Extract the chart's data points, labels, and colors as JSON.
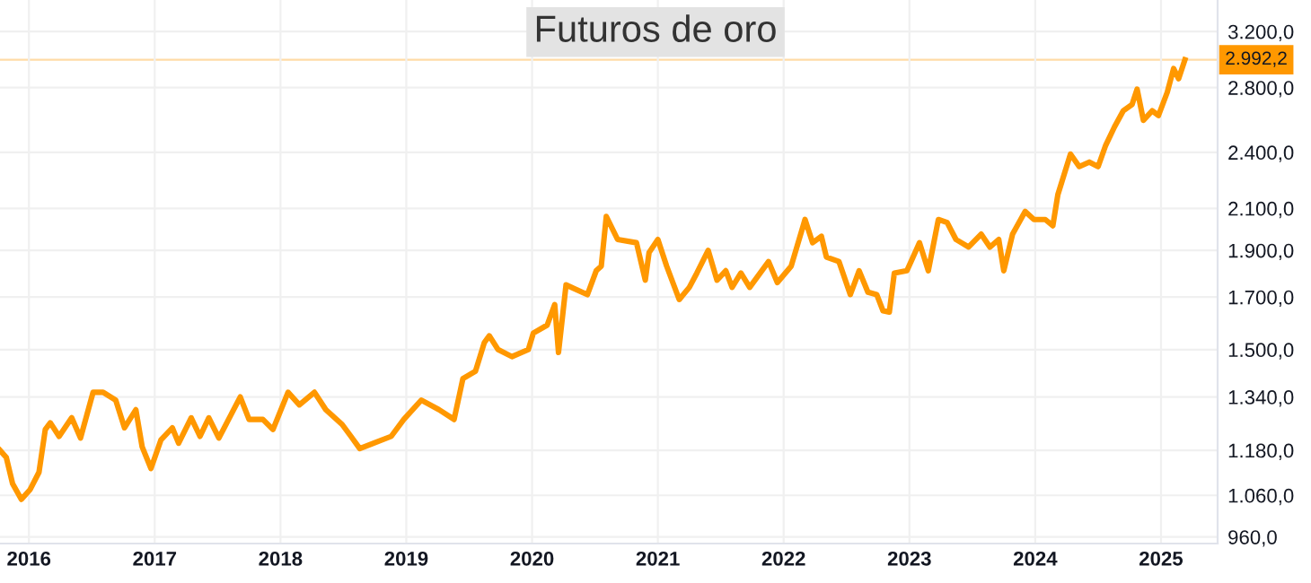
{
  "chart_data": {
    "type": "line",
    "title": "Futuros de oro",
    "log": "y",
    "grid": true,
    "x": [
      2015.77,
      2015.82,
      2015.87,
      2015.94,
      2016.01,
      2016.08,
      2016.13,
      2016.17,
      2016.24,
      2016.34,
      2016.41,
      2016.51,
      2016.59,
      2016.69,
      2016.76,
      2016.85,
      2016.9,
      2016.97,
      2017.05,
      2017.14,
      2017.19,
      2017.29,
      2017.36,
      2017.43,
      2017.51,
      2017.68,
      2017.75,
      2017.86,
      2017.94,
      2018.06,
      2018.15,
      2018.27,
      2018.36,
      2018.49,
      2018.56,
      2018.63,
      2018.74,
      2018.88,
      2018.98,
      2019.12,
      2019.26,
      2019.38,
      2019.45,
      2019.55,
      2019.62,
      2019.66,
      2019.73,
      2019.84,
      2019.97,
      2020.01,
      2020.12,
      2020.18,
      2020.21,
      2020.27,
      2020.44,
      2020.51,
      2020.55,
      2020.59,
      2020.68,
      2020.83,
      2020.9,
      2020.93,
      2021.0,
      2021.07,
      2021.17,
      2021.25,
      2021.31,
      2021.4,
      2021.47,
      2021.54,
      2021.59,
      2021.66,
      2021.73,
      2021.88,
      2021.95,
      2022.06,
      2022.17,
      2022.23,
      2022.3,
      2022.34,
      2022.44,
      2022.53,
      2022.6,
      2022.67,
      2022.74,
      2022.79,
      2022.84,
      2022.88,
      2022.98,
      2023.08,
      2023.15,
      2023.23,
      2023.3,
      2023.37,
      2023.47,
      2023.57,
      2023.64,
      2023.71,
      2023.75,
      2023.82,
      2023.92,
      2023.99,
      2024.08,
      2024.14,
      2024.18,
      2024.28,
      2024.35,
      2024.43,
      2024.5,
      2024.56,
      2024.63,
      2024.7,
      2024.77,
      2024.81,
      2024.86,
      2024.93,
      2024.98,
      2025.05,
      2025.1,
      2025.14,
      2025.19
    ],
    "series": [
      {
        "color": "#ff9800",
        "values": [
          1180,
          1160,
          1090,
          1050,
          1075,
          1120,
          1240,
          1260,
          1220,
          1275,
          1215,
          1355,
          1355,
          1330,
          1245,
          1300,
          1190,
          1130,
          1210,
          1245,
          1200,
          1275,
          1220,
          1275,
          1215,
          1340,
          1270,
          1270,
          1240,
          1355,
          1315,
          1355,
          1300,
          1255,
          1220,
          1185,
          1200,
          1220,
          1270,
          1330,
          1300,
          1270,
          1400,
          1425,
          1525,
          1550,
          1500,
          1475,
          1500,
          1560,
          1590,
          1670,
          1490,
          1750,
          1710,
          1810,
          1830,
          2060,
          1950,
          1935,
          1770,
          1890,
          1950,
          1830,
          1690,
          1740,
          1800,
          1900,
          1770,
          1810,
          1740,
          1800,
          1740,
          1850,
          1760,
          1830,
          2045,
          1935,
          1965,
          1870,
          1850,
          1710,
          1810,
          1720,
          1710,
          1645,
          1640,
          1800,
          1810,
          1935,
          1810,
          2045,
          2030,
          1950,
          1915,
          1975,
          1915,
          1950,
          1810,
          1975,
          2085,
          2045,
          2045,
          2015,
          2170,
          2390,
          2320,
          2345,
          2320,
          2440,
          2550,
          2650,
          2690,
          2790,
          2590,
          2650,
          2620,
          2770,
          2930,
          2860,
          2992.2
        ]
      }
    ],
    "xlim": [
      2015.77,
      2025.45
    ],
    "ylim": [
      945,
      3450
    ],
    "xticks": [
      2016,
      2017,
      2018,
      2019,
      2020,
      2021,
      2022,
      2023,
      2024,
      2025
    ],
    "yticks": [
      {
        "value": 960,
        "label": "960,0"
      },
      {
        "value": 1060,
        "label": "1.060,0"
      },
      {
        "value": 1180,
        "label": "1.180,0"
      },
      {
        "value": 1340,
        "label": "1.340,0"
      },
      {
        "value": 1500,
        "label": "1.500,0"
      },
      {
        "value": 1700,
        "label": "1.700,0"
      },
      {
        "value": 1900,
        "label": "1.900,0"
      },
      {
        "value": 2100,
        "label": "2.100,0"
      },
      {
        "value": 2400,
        "label": "2.400,0"
      },
      {
        "value": 2800,
        "label": "2.800,0"
      },
      {
        "value": 3200,
        "label": "3.200,0"
      }
    ],
    "ref_lines": [
      {
        "axis": "y",
        "value": 2992.2,
        "label": "2.992,2",
        "color": "#ff9800"
      }
    ]
  }
}
